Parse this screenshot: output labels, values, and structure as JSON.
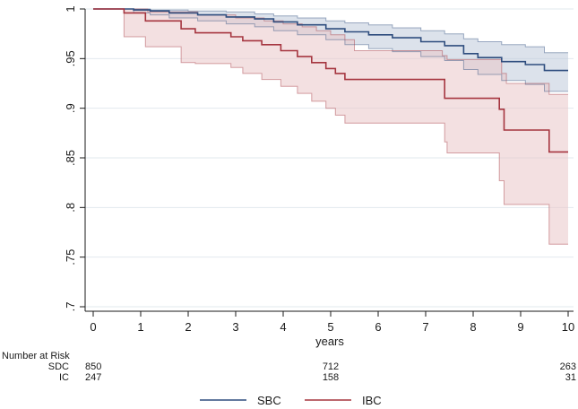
{
  "chart_data": {
    "type": "line",
    "title": "",
    "xlabel": "years",
    "ylabel": "",
    "xlim": [
      0,
      10
    ],
    "ylim": [
      0.7,
      1.0
    ],
    "x_ticks": [
      "0",
      "1",
      "2",
      "3",
      "4",
      "5",
      "6",
      "7",
      "8",
      "9",
      "10"
    ],
    "y_ticks": [
      {
        "value": 0.7,
        "label": ".7"
      },
      {
        "value": 0.75,
        "label": ".75"
      },
      {
        "value": 0.8,
        "label": ".8"
      },
      {
        "value": 0.85,
        "label": ".85"
      },
      {
        "value": 0.9,
        "label": ".9"
      },
      {
        "value": 0.95,
        "label": ".95"
      },
      {
        "value": 1.0,
        "label": "1"
      }
    ],
    "grid": "horizontal",
    "series": [
      {
        "name": "SBC",
        "color": "#2e4d7e",
        "band_color": "#bfcbdb",
        "estimate": [
          [
            0,
            1.0
          ],
          [
            0.85,
            1.0
          ],
          [
            0.85,
            0.999
          ],
          [
            1.2,
            0.999
          ],
          [
            1.2,
            0.998
          ],
          [
            1.6,
            0.998
          ],
          [
            1.6,
            0.996
          ],
          [
            2.2,
            0.996
          ],
          [
            2.2,
            0.994
          ],
          [
            2.8,
            0.994
          ],
          [
            2.8,
            0.992
          ],
          [
            3.4,
            0.992
          ],
          [
            3.4,
            0.99
          ],
          [
            3.8,
            0.99
          ],
          [
            3.8,
            0.987
          ],
          [
            4.3,
            0.987
          ],
          [
            4.3,
            0.984
          ],
          [
            4.9,
            0.984
          ],
          [
            4.9,
            0.98
          ],
          [
            5.3,
            0.98
          ],
          [
            5.3,
            0.977
          ],
          [
            5.8,
            0.977
          ],
          [
            5.8,
            0.974
          ],
          [
            6.3,
            0.974
          ],
          [
            6.3,
            0.971
          ],
          [
            6.9,
            0.971
          ],
          [
            6.9,
            0.967
          ],
          [
            7.4,
            0.967
          ],
          [
            7.4,
            0.963
          ],
          [
            7.8,
            0.963
          ],
          [
            7.8,
            0.955
          ],
          [
            8.1,
            0.955
          ],
          [
            8.1,
            0.951
          ],
          [
            8.6,
            0.951
          ],
          [
            8.6,
            0.947
          ],
          [
            9.1,
            0.947
          ],
          [
            9.1,
            0.944
          ],
          [
            9.5,
            0.944
          ],
          [
            9.5,
            0.938
          ],
          [
            10.0,
            0.938
          ]
        ],
        "ci_upper": [
          [
            0,
            1.0
          ],
          [
            0.8,
            1.0
          ],
          [
            1.2,
            1.0
          ],
          [
            1.2,
            0.999
          ],
          [
            2.0,
            0.999
          ],
          [
            2.0,
            0.998
          ],
          [
            2.8,
            0.998
          ],
          [
            2.8,
            0.997
          ],
          [
            3.4,
            0.997
          ],
          [
            3.4,
            0.995
          ],
          [
            3.8,
            0.995
          ],
          [
            3.8,
            0.993
          ],
          [
            4.3,
            0.993
          ],
          [
            4.3,
            0.991
          ],
          [
            4.9,
            0.991
          ],
          [
            4.9,
            0.988
          ],
          [
            5.3,
            0.988
          ],
          [
            5.3,
            0.986
          ],
          [
            5.8,
            0.986
          ],
          [
            5.8,
            0.984
          ],
          [
            6.3,
            0.984
          ],
          [
            6.3,
            0.981
          ],
          [
            6.9,
            0.981
          ],
          [
            6.9,
            0.978
          ],
          [
            7.4,
            0.978
          ],
          [
            7.4,
            0.975
          ],
          [
            7.8,
            0.975
          ],
          [
            7.8,
            0.97
          ],
          [
            8.1,
            0.97
          ],
          [
            8.1,
            0.967
          ],
          [
            8.6,
            0.967
          ],
          [
            8.6,
            0.964
          ],
          [
            9.1,
            0.964
          ],
          [
            9.1,
            0.962
          ],
          [
            9.5,
            0.962
          ],
          [
            9.5,
            0.956
          ],
          [
            10.0,
            0.956
          ]
        ],
        "ci_lower": [
          [
            0,
            1.0
          ],
          [
            0.85,
            1.0
          ],
          [
            0.85,
            0.996
          ],
          [
            1.2,
            0.996
          ],
          [
            1.2,
            0.994
          ],
          [
            1.6,
            0.994
          ],
          [
            1.6,
            0.991
          ],
          [
            2.2,
            0.991
          ],
          [
            2.2,
            0.988
          ],
          [
            2.8,
            0.988
          ],
          [
            2.8,
            0.985
          ],
          [
            3.4,
            0.985
          ],
          [
            3.4,
            0.982
          ],
          [
            3.8,
            0.982
          ],
          [
            3.8,
            0.978
          ],
          [
            4.3,
            0.978
          ],
          [
            4.3,
            0.974
          ],
          [
            4.9,
            0.974
          ],
          [
            4.9,
            0.969
          ],
          [
            5.3,
            0.969
          ],
          [
            5.3,
            0.964
          ],
          [
            5.8,
            0.964
          ],
          [
            5.8,
            0.96
          ],
          [
            6.3,
            0.96
          ],
          [
            6.3,
            0.957
          ],
          [
            6.9,
            0.957
          ],
          [
            6.9,
            0.952
          ],
          [
            7.4,
            0.952
          ],
          [
            7.4,
            0.948
          ],
          [
            7.8,
            0.948
          ],
          [
            7.8,
            0.939
          ],
          [
            8.1,
            0.939
          ],
          [
            8.1,
            0.934
          ],
          [
            8.6,
            0.934
          ],
          [
            8.6,
            0.928
          ],
          [
            9.1,
            0.928
          ],
          [
            9.1,
            0.924
          ],
          [
            9.5,
            0.924
          ],
          [
            9.5,
            0.917
          ],
          [
            10.0,
            0.917
          ]
        ]
      },
      {
        "name": "IBC",
        "color": "#a5353f",
        "band_color": "#e9c7c8",
        "estimate": [
          [
            0,
            1.0
          ],
          [
            0.65,
            1.0
          ],
          [
            0.65,
            0.996
          ],
          [
            1.1,
            0.996
          ],
          [
            1.1,
            0.988
          ],
          [
            1.85,
            0.988
          ],
          [
            1.85,
            0.98
          ],
          [
            2.15,
            0.98
          ],
          [
            2.15,
            0.976
          ],
          [
            2.9,
            0.976
          ],
          [
            2.9,
            0.972
          ],
          [
            3.15,
            0.972
          ],
          [
            3.15,
            0.968
          ],
          [
            3.55,
            0.968
          ],
          [
            3.55,
            0.964
          ],
          [
            3.95,
            0.964
          ],
          [
            3.95,
            0.958
          ],
          [
            4.3,
            0.958
          ],
          [
            4.3,
            0.952
          ],
          [
            4.6,
            0.952
          ],
          [
            4.6,
            0.946
          ],
          [
            4.9,
            0.946
          ],
          [
            4.9,
            0.94
          ],
          [
            5.1,
            0.94
          ],
          [
            5.1,
            0.935
          ],
          [
            5.3,
            0.935
          ],
          [
            5.3,
            0.929
          ],
          [
            7.4,
            0.929
          ],
          [
            7.4,
            0.91
          ],
          [
            8.55,
            0.91
          ],
          [
            8.55,
            0.899
          ],
          [
            8.65,
            0.899
          ],
          [
            8.65,
            0.878
          ],
          [
            9.6,
            0.878
          ],
          [
            9.6,
            0.856
          ],
          [
            10.0,
            0.856
          ]
        ],
        "ci_upper": [
          [
            0,
            1.0
          ],
          [
            1.15,
            1.0
          ],
          [
            1.15,
            0.997
          ],
          [
            2.2,
            0.997
          ],
          [
            2.2,
            0.994
          ],
          [
            3.0,
            0.994
          ],
          [
            3.0,
            0.991
          ],
          [
            3.6,
            0.991
          ],
          [
            3.6,
            0.988
          ],
          [
            4.0,
            0.988
          ],
          [
            4.0,
            0.985
          ],
          [
            4.4,
            0.985
          ],
          [
            4.4,
            0.982
          ],
          [
            4.7,
            0.982
          ],
          [
            4.7,
            0.978
          ],
          [
            5.0,
            0.978
          ],
          [
            5.0,
            0.974
          ],
          [
            5.3,
            0.974
          ],
          [
            5.3,
            0.969
          ],
          [
            5.5,
            0.969
          ],
          [
            5.5,
            0.958
          ],
          [
            7.35,
            0.958
          ],
          [
            7.35,
            0.953
          ],
          [
            7.45,
            0.953
          ],
          [
            7.45,
            0.949
          ],
          [
            8.6,
            0.949
          ],
          [
            8.6,
            0.935
          ],
          [
            8.7,
            0.935
          ],
          [
            8.7,
            0.925
          ],
          [
            9.6,
            0.925
          ],
          [
            9.6,
            0.914
          ],
          [
            10.0,
            0.914
          ]
        ],
        "ci_lower": [
          [
            0,
            1.0
          ],
          [
            0.65,
            1.0
          ],
          [
            0.65,
            0.972
          ],
          [
            1.1,
            0.972
          ],
          [
            1.1,
            0.962
          ],
          [
            1.85,
            0.962
          ],
          [
            1.85,
            0.946
          ],
          [
            2.15,
            0.946
          ],
          [
            2.15,
            0.945
          ],
          [
            2.9,
            0.945
          ],
          [
            2.9,
            0.941
          ],
          [
            3.15,
            0.941
          ],
          [
            3.15,
            0.935
          ],
          [
            3.55,
            0.935
          ],
          [
            3.55,
            0.929
          ],
          [
            3.95,
            0.929
          ],
          [
            3.95,
            0.922
          ],
          [
            4.3,
            0.922
          ],
          [
            4.3,
            0.915
          ],
          [
            4.6,
            0.915
          ],
          [
            4.6,
            0.907
          ],
          [
            4.9,
            0.907
          ],
          [
            4.9,
            0.9
          ],
          [
            5.1,
            0.9
          ],
          [
            5.1,
            0.893
          ],
          [
            5.3,
            0.893
          ],
          [
            5.3,
            0.885
          ],
          [
            7.4,
            0.885
          ],
          [
            7.4,
            0.866
          ],
          [
            7.45,
            0.866
          ],
          [
            7.45,
            0.855
          ],
          [
            8.55,
            0.855
          ],
          [
            8.55,
            0.827
          ],
          [
            8.65,
            0.827
          ],
          [
            8.65,
            0.803
          ],
          [
            9.6,
            0.803
          ],
          [
            9.6,
            0.763
          ],
          [
            10.0,
            0.763
          ]
        ]
      }
    ]
  },
  "risk_table": {
    "title": "Number at Risk",
    "rows": [
      {
        "label": "SDC",
        "values": [
          {
            "x": 0,
            "text": "850"
          },
          {
            "x": 5,
            "text": "712"
          },
          {
            "x": 10,
            "text": "263"
          }
        ]
      },
      {
        "label": "IC",
        "values": [
          {
            "x": 0,
            "text": "247"
          },
          {
            "x": 5,
            "text": "158"
          },
          {
            "x": 10,
            "text": "31"
          }
        ]
      }
    ]
  },
  "legend": {
    "items": [
      {
        "label": "SBC",
        "color": "#2e4d7e"
      },
      {
        "label": "IBC",
        "color": "#a5353f"
      }
    ]
  },
  "colors": {
    "grid": "#e2e9ee",
    "axis": "#1a1a1a"
  }
}
